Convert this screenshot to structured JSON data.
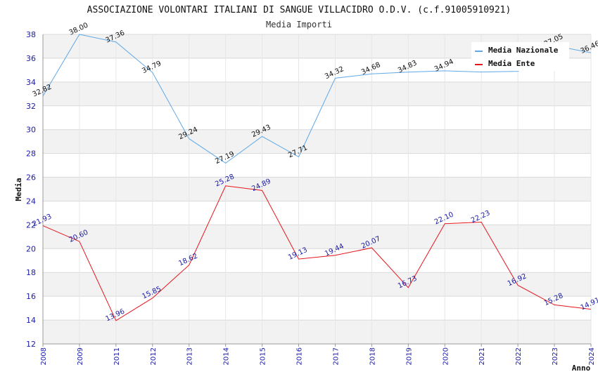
{
  "chart_data": {
    "type": "line",
    "title": "ASSOCIAZIONE VOLONTARI ITALIANI DI SANGUE VILLACIDRO O.D.V. (c.f.91005910921)",
    "subtitle": "Media Importi",
    "xlabel": "Anno",
    "ylabel": "Media",
    "ylim": [
      12,
      38
    ],
    "yticks": [
      12,
      14,
      16,
      18,
      20,
      22,
      24,
      26,
      28,
      30,
      32,
      34,
      36,
      38
    ],
    "categories": [
      "2008",
      "2009",
      "2011",
      "2012",
      "2013",
      "2014",
      "2015",
      "2016",
      "2017",
      "2018",
      "2019",
      "2020",
      "2021",
      "2022",
      "2023",
      "2024"
    ],
    "grid": true,
    "legend_position": "top-right",
    "series": [
      {
        "name": "Media Nazionale",
        "color": "#5fa8e8",
        "label_color": "#111111",
        "values": [
          32.82,
          38.0,
          37.36,
          34.79,
          29.24,
          27.19,
          29.43,
          27.71,
          34.32,
          34.68,
          34.83,
          34.94,
          34.84,
          34.9,
          37.05,
          36.46
        ],
        "labels": [
          "32.82",
          "38.00",
          "37.36",
          "34.79",
          "29.24",
          "27.19",
          "29.43",
          "27.71",
          "34.32",
          "34.68",
          "34.83",
          "34.94",
          "",
          "",
          "37.05",
          "36.46"
        ]
      },
      {
        "name": "Media Ente",
        "color": "#e8141c",
        "label_color": "#1a1aa6",
        "values": [
          21.93,
          20.6,
          13.96,
          15.85,
          18.62,
          25.28,
          24.89,
          19.13,
          19.44,
          20.07,
          16.73,
          22.1,
          22.23,
          16.92,
          15.28,
          14.91
        ],
        "labels": [
          "21.93",
          "20.60",
          "13.96",
          "15.85",
          "18.62",
          "25.28",
          "24.89",
          "19.13",
          "19.44",
          "20.07",
          "16.73",
          "22.10",
          "22.23",
          "16.92",
          "15.28",
          "14.91"
        ]
      }
    ]
  }
}
